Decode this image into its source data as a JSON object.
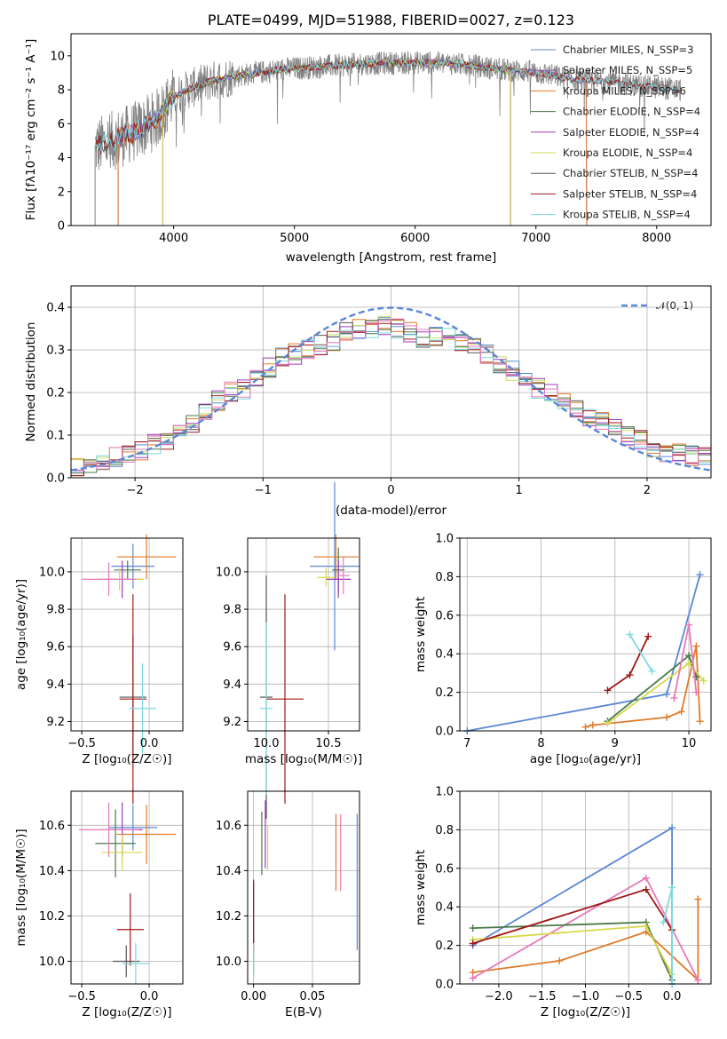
{
  "colors": {
    "miles_ch": "#5b87d6",
    "miles_sa": "#9b59b6",
    "miles_kr": "#e07b2a",
    "elodie_ch": "#4a7a4a",
    "elodie_sa": "#a03ac0",
    "elodie_kr": "#d6d84a",
    "stelib_ch": "#555555",
    "stelib_sa": "#a01818",
    "stelib_kr": "#7fd8e0",
    "pink": "#e879b8",
    "lime": "#c8e060",
    "data": "#808080",
    "normal": "#5b87d6"
  },
  "chart_data": [
    {
      "type": "line",
      "title": "PLATE=0499, MJD=51988, FIBERID=0027, z=0.123",
      "xlabel": "wavelength [Angstrom, rest frame]",
      "ylabel": "Flux [fλ10⁻¹⁷ erg cm⁻² s⁻¹ A⁻¹]",
      "xlim": [
        3150,
        8450
      ],
      "ylim": [
        0,
        11.3
      ],
      "xticks": [
        4000,
        5000,
        6000,
        7000,
        8000
      ],
      "yticks": [
        0,
        2,
        4,
        6,
        8,
        10
      ],
      "legend_placement": "top-right",
      "legend": [
        "Chabrier MILES, N_SSP=3",
        "Salpeter MILES, N_SSP=5",
        "Kroupa MILES, N_SSP=6",
        "Chabrier ELODIE, N_SSP=4",
        "Salpeter ELODIE, N_SSP=4",
        "Kroupa ELODIE, N_SSP=4",
        "Chabrier STELIB, N_SSP=4",
        "Salpeter STELIB, N_SSP=4",
        "Kroupa STELIB, N_SSP=4"
      ],
      "continuum": {
        "x": [
          3350,
          3500,
          3700,
          3850,
          4000,
          4150,
          4300,
          4500,
          4700,
          4900,
          5100,
          5300,
          5500,
          5700,
          5900,
          6100,
          6300,
          6500,
          6700,
          6900,
          7100,
          7300,
          7500,
          7700,
          7900,
          8200
        ],
        "y": [
          4.6,
          5.0,
          5.6,
          6.2,
          7.6,
          8.1,
          8.5,
          8.8,
          9.0,
          9.2,
          9.3,
          9.4,
          9.5,
          9.55,
          9.6,
          9.6,
          9.55,
          9.4,
          9.2,
          9.1,
          8.9,
          8.6,
          8.5,
          8.4,
          8.2,
          8.0
        ]
      }
    },
    {
      "type": "histogram",
      "xlabel": "(data-model)/error",
      "ylabel": "Normed distribution",
      "xlim": [
        -2.5,
        2.5
      ],
      "ylim": [
        0,
        0.45
      ],
      "xticks": [
        -2,
        -1,
        0,
        1,
        2
      ],
      "yticks": [
        0.0,
        0.1,
        0.2,
        0.3,
        0.4
      ],
      "legend": [
        "𝒩(0, 1)"
      ],
      "legend_placement": "top-right",
      "bins": [
        -2.5,
        -2.4,
        -2.3,
        -2.2,
        -2.1,
        -2.0,
        -1.9,
        -1.8,
        -1.7,
        -1.6,
        -1.5,
        -1.4,
        -1.3,
        -1.2,
        -1.1,
        -1.0,
        -0.9,
        -0.8,
        -0.7,
        -0.6,
        -0.5,
        -0.4,
        -0.3,
        -0.2,
        -0.1,
        0.0,
        0.1,
        0.2,
        0.3,
        0.4,
        0.5,
        0.6,
        0.7,
        0.8,
        0.9,
        1.0,
        1.1,
        1.2,
        1.3,
        1.4,
        1.5,
        1.6,
        1.7,
        1.8,
        1.9,
        2.0,
        2.1,
        2.2,
        2.3,
        2.4,
        2.5
      ],
      "base_density": [
        0.02,
        0.03,
        0.04,
        0.05,
        0.05,
        0.06,
        0.08,
        0.09,
        0.11,
        0.13,
        0.16,
        0.18,
        0.2,
        0.21,
        0.24,
        0.26,
        0.28,
        0.29,
        0.3,
        0.31,
        0.32,
        0.34,
        0.35,
        0.35,
        0.36,
        0.35,
        0.34,
        0.33,
        0.33,
        0.34,
        0.32,
        0.31,
        0.29,
        0.27,
        0.25,
        0.23,
        0.21,
        0.2,
        0.18,
        0.16,
        0.14,
        0.13,
        0.12,
        0.1,
        0.09,
        0.07,
        0.06,
        0.06,
        0.05,
        0.05
      ]
    },
    {
      "type": "scatter",
      "name": "age vs Z",
      "xlabel": "Z [log₁₀(Z/Z☉)]",
      "ylabel": "age [log₁₀(age/yr)]",
      "xlim": [
        -0.58,
        0.25
      ],
      "ylim": [
        9.15,
        10.18
      ],
      "xticks": [
        -0.5,
        0.0
      ],
      "yticks": [
        9.2,
        9.4,
        9.6,
        9.8,
        10.0
      ],
      "points": [
        {
          "c": "miles_ch",
          "x": -0.12,
          "y": 10.03,
          "xerr": 0.16,
          "yerr": 0.12
        },
        {
          "c": "miles_kr",
          "x": -0.02,
          "y": 10.08,
          "xerr": 0.22,
          "yerr": 0.12
        },
        {
          "c": "elodie_ch",
          "x": -0.16,
          "y": 10.01,
          "xerr": 0.1,
          "yerr": 0.05
        },
        {
          "c": "elodie_sa",
          "x": -0.2,
          "y": 9.96,
          "xerr": 0.15,
          "yerr": 0.1
        },
        {
          "c": "elodie_kr",
          "x": -0.22,
          "y": 9.96,
          "xerr": 0.18,
          "yerr": 0.06
        },
        {
          "c": "pink",
          "x": -0.3,
          "y": 9.96,
          "xerr": 0.2,
          "yerr": 0.09
        },
        {
          "c": "stelib_ch",
          "x": -0.12,
          "y": 9.33,
          "xerr": 0.1,
          "yerr": 0.33
        },
        {
          "c": "stelib_sa",
          "x": -0.12,
          "y": 9.32,
          "xerr": 0.1,
          "yerr": 0.56
        },
        {
          "c": "stelib_kr",
          "x": -0.05,
          "y": 9.27,
          "xerr": 0.1,
          "yerr": 0.24
        }
      ]
    },
    {
      "type": "scatter",
      "name": "age vs mass",
      "xlabel": "mass [log₁₀(M/M☉)]",
      "ylabel": "",
      "xlim": [
        9.85,
        10.75
      ],
      "ylim": [
        9.15,
        10.18
      ],
      "xticks": [
        10.0,
        10.5
      ],
      "yticks": [
        9.2,
        9.4,
        9.6,
        9.8,
        10.0
      ],
      "points": [
        {
          "c": "miles_ch",
          "x": 10.55,
          "y": 10.03,
          "xerr": 0.2,
          "yerr": 0.45
        },
        {
          "c": "miles_kr",
          "x": 10.56,
          "y": 10.08,
          "xerr": 0.18,
          "yerr": 0.12
        },
        {
          "c": "elodie_ch",
          "x": 10.58,
          "y": 10.01,
          "xerr": 0.05,
          "yerr": 0.12
        },
        {
          "c": "elodie_sa",
          "x": 10.58,
          "y": 9.96,
          "xerr": 0.1,
          "yerr": 0.1
        },
        {
          "c": "elodie_kr",
          "x": 10.48,
          "y": 9.97,
          "xerr": 0.07,
          "yerr": 0.05
        },
        {
          "c": "pink",
          "x": 10.62,
          "y": 9.98,
          "xerr": 0.05,
          "yerr": 0.1
        },
        {
          "c": "stelib_ch",
          "x": 10.0,
          "y": 9.33,
          "xerr": 0.05,
          "yerr": 0.65
        },
        {
          "c": "stelib_sa",
          "x": 10.15,
          "y": 9.32,
          "xerr": 0.15,
          "yerr": 0.56
        },
        {
          "c": "stelib_kr",
          "x": 10.0,
          "y": 9.27,
          "xerr": 0.05,
          "yerr": 0.46
        }
      ]
    },
    {
      "type": "line",
      "name": "mass weight vs age",
      "xlabel": "age [log₁₀(age/yr)]",
      "ylabel": "mass weight",
      "xlim": [
        6.9,
        10.3
      ],
      "ylim": [
        0,
        1.0
      ],
      "xticks": [
        7,
        8,
        9,
        10
      ],
      "yticks": [
        0.0,
        0.2,
        0.4,
        0.6,
        0.8,
        1.0
      ],
      "series": [
        {
          "c": "miles_ch",
          "x": [
            7.0,
            9.7,
            10.15
          ],
          "y": [
            0.0,
            0.19,
            0.81
          ]
        },
        {
          "c": "miles_kr",
          "x": [
            8.6,
            8.7,
            9.7,
            9.9,
            10.1,
            10.15
          ],
          "y": [
            0.02,
            0.03,
            0.07,
            0.1,
            0.44,
            0.05
          ]
        },
        {
          "c": "elodie_ch",
          "x": [
            8.9,
            10.0,
            10.1
          ],
          "y": [
            0.05,
            0.39,
            0.28
          ]
        },
        {
          "c": "elodie_kr",
          "x": [
            8.9,
            10.0,
            10.2
          ],
          "y": [
            0.04,
            0.35,
            0.26
          ]
        },
        {
          "c": "stelib_sa",
          "x": [
            8.9,
            9.2,
            9.45
          ],
          "y": [
            0.21,
            0.29,
            0.49
          ]
        },
        {
          "c": "stelib_kr",
          "x": [
            9.2,
            9.5
          ],
          "y": [
            0.5,
            0.31
          ]
        },
        {
          "c": "pink",
          "x": [
            9.8,
            10.0,
            10.1
          ],
          "y": [
            0.17,
            0.55,
            0.2
          ]
        }
      ]
    },
    {
      "type": "scatter",
      "name": "mass vs Z",
      "xlabel": "Z [log₁₀(Z/Z☉)]",
      "ylabel": "mass [log₁₀(M/M☉)]",
      "xlim": [
        -0.58,
        0.25
      ],
      "ylim": [
        9.9,
        10.75
      ],
      "xticks": [
        -0.5,
        0.0
      ],
      "yticks": [
        10.0,
        10.2,
        10.4,
        10.6
      ],
      "points": [
        {
          "c": "miles_ch",
          "x": -0.12,
          "y": 10.59,
          "xerr": 0.18,
          "yerr": 0.1
        },
        {
          "c": "miles_kr",
          "x": -0.02,
          "y": 10.56,
          "xerr": 0.22,
          "yerr": 0.13
        },
        {
          "c": "elodie_ch",
          "x": -0.25,
          "y": 10.52,
          "xerr": 0.15,
          "yerr": 0.15
        },
        {
          "c": "elodie_sa",
          "x": -0.2,
          "y": 10.58,
          "xerr": 0.15,
          "yerr": 0.12
        },
        {
          "c": "elodie_kr",
          "x": -0.2,
          "y": 10.48,
          "xerr": 0.15,
          "yerr": 0.08
        },
        {
          "c": "pink",
          "x": -0.3,
          "y": 10.58,
          "xerr": 0.22,
          "yerr": 0.12
        },
        {
          "c": "stelib_ch",
          "x": -0.17,
          "y": 10.0,
          "xerr": 0.1,
          "yerr": 0.07
        },
        {
          "c": "stelib_sa",
          "x": -0.14,
          "y": 10.14,
          "xerr": 0.1,
          "yerr": 0.16
        },
        {
          "c": "stelib_kr",
          "x": -0.1,
          "y": 9.99,
          "xerr": 0.1,
          "yerr": 0.09
        }
      ]
    },
    {
      "type": "scatter",
      "name": "E(B-V)",
      "xlabel": "E(B-V)",
      "ylabel": "",
      "xlim": [
        -0.005,
        0.09
      ],
      "ylim": [
        9.9,
        10.75
      ],
      "xticks": [
        0.0,
        0.05
      ],
      "yticks": [
        10.0,
        10.2,
        10.4,
        10.6
      ],
      "points": [
        {
          "c": "miles_ch",
          "x": 0.088,
          "y": 10.35,
          "yerr": 0.3
        },
        {
          "c": "miles_kr",
          "x": 0.07,
          "y": 10.48,
          "yerr": 0.17
        },
        {
          "c": "pink",
          "x": 0.074,
          "y": 10.48,
          "yerr": 0.17
        },
        {
          "c": "elodie_ch",
          "x": 0.007,
          "y": 10.52,
          "yerr": 0.14
        },
        {
          "c": "elodie_sa",
          "x": 0.01,
          "y": 10.56,
          "yerr": 0.15
        },
        {
          "c": "elodie_kr",
          "x": 0.012,
          "y": 10.5,
          "yerr": 0.1
        },
        {
          "c": "stelib_ch",
          "x": 0.0,
          "y": 10.15,
          "yerr": 0.2
        },
        {
          "c": "stelib_sa",
          "x": 0.0,
          "y": 10.2,
          "yerr": 0.16
        },
        {
          "c": "stelib_kr",
          "x": 0.0,
          "y": 10.0,
          "yerr": 0.08
        }
      ]
    },
    {
      "type": "line",
      "name": "mass weight vs Z",
      "xlabel": "Z [log₁₀(Z/Z☉)]",
      "ylabel": "mass weight",
      "xlim": [
        -2.45,
        0.45
      ],
      "ylim": [
        0,
        1.0
      ],
      "xticks": [
        -2.0,
        -1.5,
        -1.0,
        -0.5,
        0.0
      ],
      "yticks": [
        0.0,
        0.2,
        0.4,
        0.6,
        0.8,
        1.0
      ],
      "series": [
        {
          "c": "miles_ch",
          "x": [
            -2.3,
            0.0,
            0.0
          ],
          "y": [
            0.2,
            0.81,
            0.0
          ]
        },
        {
          "c": "miles_kr",
          "x": [
            -2.3,
            -1.3,
            -0.3,
            0.3,
            0.3
          ],
          "y": [
            0.06,
            0.12,
            0.27,
            0.02,
            0.44
          ]
        },
        {
          "c": "pink",
          "x": [
            -2.3,
            -0.3,
            0.3
          ],
          "y": [
            0.03,
            0.55,
            0.02
          ]
        },
        {
          "c": "elodie_ch",
          "x": [
            -2.3,
            -0.3,
            0.0
          ],
          "y": [
            0.29,
            0.32,
            0.02
          ]
        },
        {
          "c": "elodie_kr",
          "x": [
            -2.3,
            -0.3,
            0.0
          ],
          "y": [
            0.23,
            0.3,
            0.05
          ]
        },
        {
          "c": "stelib_sa",
          "x": [
            -2.3,
            -0.3,
            0.0
          ],
          "y": [
            0.21,
            0.49,
            0.28
          ]
        },
        {
          "c": "stelib_kr",
          "x": [
            -0.1,
            0.0,
            0.0
          ],
          "y": [
            0.32,
            0.5,
            0.0
          ]
        }
      ]
    }
  ]
}
